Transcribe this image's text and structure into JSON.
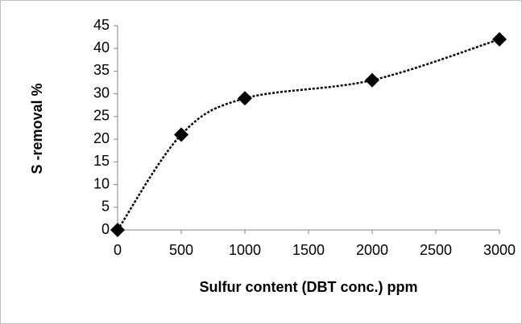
{
  "chart_data": {
    "type": "line",
    "x_label": "Sulfur content (DBT conc.) ppm",
    "y_label": "S -removal %",
    "x": [
      0,
      500,
      1000,
      2000,
      3000
    ],
    "series": [
      {
        "name": "S-removal",
        "color": "#000000",
        "values": [
          0,
          21,
          29,
          33,
          42
        ]
      }
    ],
    "xlim": [
      0,
      3000
    ],
    "xticks": [
      0,
      500,
      1000,
      1500,
      2000,
      2500,
      3000
    ],
    "ylim": [
      0,
      45
    ],
    "yticks": [
      0,
      5,
      10,
      15,
      20,
      25,
      30,
      35,
      40,
      45
    ],
    "smooth": true,
    "grid": false
  }
}
